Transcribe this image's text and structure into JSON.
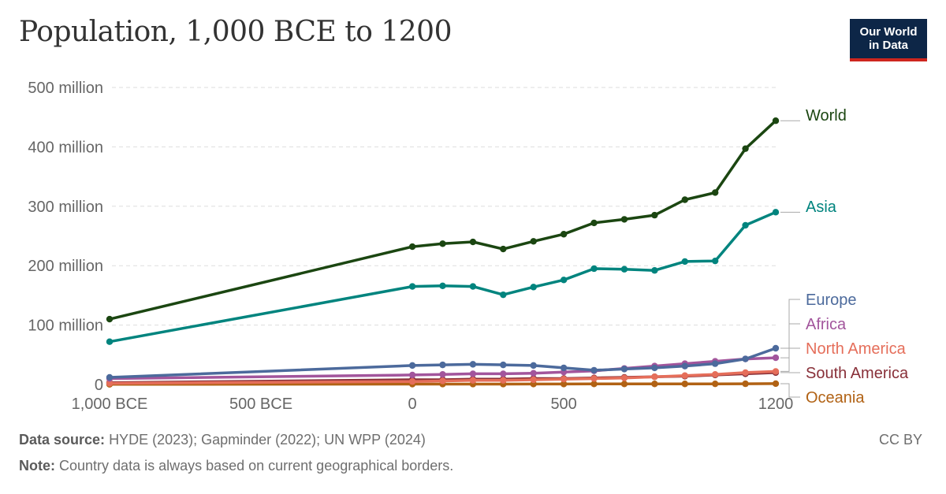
{
  "header": {
    "title": "Population, 1,000 BCE to 1200",
    "logo_line1": "Our World",
    "logo_line2": "in Data"
  },
  "footer": {
    "source_label": "Data source:",
    "source_text": "HYDE (2023); Gapminder (2022); UN WPP (2024)",
    "note_label": "Note:",
    "note_text": "Country data is always based on current geographical borders.",
    "license": "CC BY"
  },
  "chart_data": {
    "type": "line",
    "title": "Population, 1,000 BCE to 1200",
    "xlabel": "",
    "ylabel": "",
    "xlim": [
      -1000,
      1200
    ],
    "ylim": [
      0,
      500000000
    ],
    "grid": "horizontal dashed",
    "x_ticks": [
      {
        "value": -1000,
        "label": "1,000 BCE"
      },
      {
        "value": -500,
        "label": "500 BCE"
      },
      {
        "value": 0,
        "label": "0"
      },
      {
        "value": 500,
        "label": "500"
      },
      {
        "value": 1200,
        "label": "1200"
      }
    ],
    "y_ticks": [
      {
        "value": 0,
        "label": "0"
      },
      {
        "value": 100000000,
        "label": "100 million"
      },
      {
        "value": 200000000,
        "label": "200 million"
      },
      {
        "value": 300000000,
        "label": "300 million"
      },
      {
        "value": 400000000,
        "label": "400 million"
      },
      {
        "value": 500000000,
        "label": "500 million"
      }
    ],
    "x": [
      -1000,
      0,
      100,
      200,
      300,
      400,
      500,
      600,
      700,
      800,
      900,
      1000,
      1100,
      1200
    ],
    "series": [
      {
        "name": "World",
        "color": "#1b4611",
        "values": [
          110000000,
          232000000,
          237000000,
          240000000,
          228000000,
          241000000,
          253000000,
          272000000,
          278000000,
          285000000,
          311000000,
          323000000,
          397000000,
          444000000
        ]
      },
      {
        "name": "Asia",
        "color": "#00847e",
        "values": [
          72000000,
          165000000,
          166000000,
          165000000,
          151000000,
          164000000,
          176000000,
          195000000,
          194000000,
          192000000,
          207000000,
          208000000,
          268000000,
          290000000
        ]
      },
      {
        "name": "Europe",
        "color": "#4c6a9c",
        "values": [
          12000000,
          32000000,
          33000000,
          34000000,
          33000000,
          32000000,
          28000000,
          24000000,
          26000000,
          28000000,
          31000000,
          35000000,
          43000000,
          61000000
        ]
      },
      {
        "name": "Africa",
        "color": "#a2559c",
        "values": [
          10000000,
          16000000,
          17000000,
          18000000,
          18000000,
          19000000,
          21000000,
          23000000,
          27000000,
          31000000,
          35000000,
          39000000,
          43000000,
          45000000
        ]
      },
      {
        "name": "North America",
        "color": "#e56e5a",
        "values": [
          2000000,
          5000000,
          6000000,
          7000000,
          7000000,
          8000000,
          9000000,
          10000000,
          11000000,
          13000000,
          15000000,
          17000000,
          20000000,
          22000000
        ]
      },
      {
        "name": "South America",
        "color": "#883039",
        "values": [
          3000000,
          8000000,
          8000000,
          9000000,
          9000000,
          10000000,
          10000000,
          11000000,
          12000000,
          13000000,
          14000000,
          16000000,
          18000000,
          20000000
        ]
      },
      {
        "name": "Oceania",
        "color": "#b16214",
        "values": [
          300000,
          600000,
          700000,
          700000,
          700000,
          800000,
          800000,
          900000,
          900000,
          1000000,
          1000000,
          1100000,
          1200000,
          1400000
        ]
      }
    ],
    "label_order": [
      "World",
      "Asia",
      "Europe",
      "Africa",
      "North America",
      "South America",
      "Oceania"
    ]
  }
}
